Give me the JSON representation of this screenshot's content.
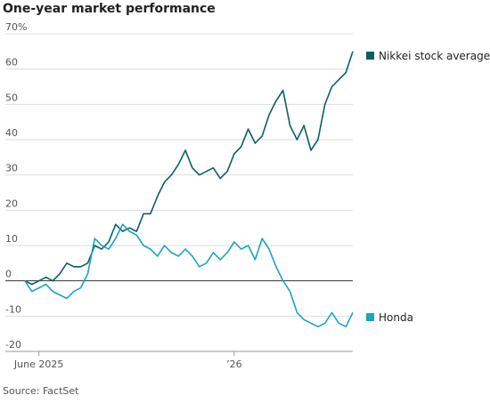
{
  "chart_data": {
    "type": "line",
    "title": "One-year market performance",
    "source": "Source: FactSet",
    "categories": [
      null,
      null,
      "June 2025",
      null,
      null,
      null,
      null,
      null,
      null,
      null,
      null,
      null,
      null,
      null,
      null,
      null,
      null,
      null,
      null,
      null,
      null,
      null,
      null,
      null,
      null,
      null,
      null,
      null,
      null,
      null,
      "’26",
      null,
      null,
      null,
      null,
      null,
      null,
      null,
      null,
      null,
      null,
      null,
      null,
      null,
      null,
      null,
      null,
      null
    ],
    "series": [
      {
        "name": "Nikkei stock average",
        "color": "#0b5f66",
        "values": [
          0,
          -1,
          0,
          1,
          0,
          2,
          5,
          4,
          4,
          5,
          10,
          9,
          11,
          16,
          14,
          15,
          14,
          19,
          19,
          24,
          28,
          30,
          33,
          37,
          32,
          30,
          31,
          32,
          29,
          31,
          36,
          38,
          43,
          39,
          41,
          47,
          51,
          54,
          44,
          40,
          44,
          37,
          40,
          50,
          55,
          57,
          59,
          65
        ]
      },
      {
        "name": "Honda",
        "color": "#1ba3bf",
        "values": [
          0,
          -3,
          -2,
          -1,
          -3,
          -4,
          -5,
          -3,
          -2,
          2,
          12,
          10,
          9,
          12,
          16,
          14,
          13,
          10,
          9,
          7,
          10,
          8,
          7,
          9,
          7,
          4,
          5,
          8,
          6,
          8,
          11,
          9,
          10,
          6,
          12,
          9,
          4,
          0,
          -3,
          -9,
          -11,
          -12,
          -13,
          -12,
          -9,
          -12,
          -13,
          -9
        ]
      }
    ],
    "ylim": [
      -20,
      70
    ],
    "yticks": [
      -20,
      -10,
      0,
      10,
      20,
      30,
      40,
      50,
      60,
      {
        "value": 70,
        "label": "70%"
      }
    ],
    "grid": true
  }
}
